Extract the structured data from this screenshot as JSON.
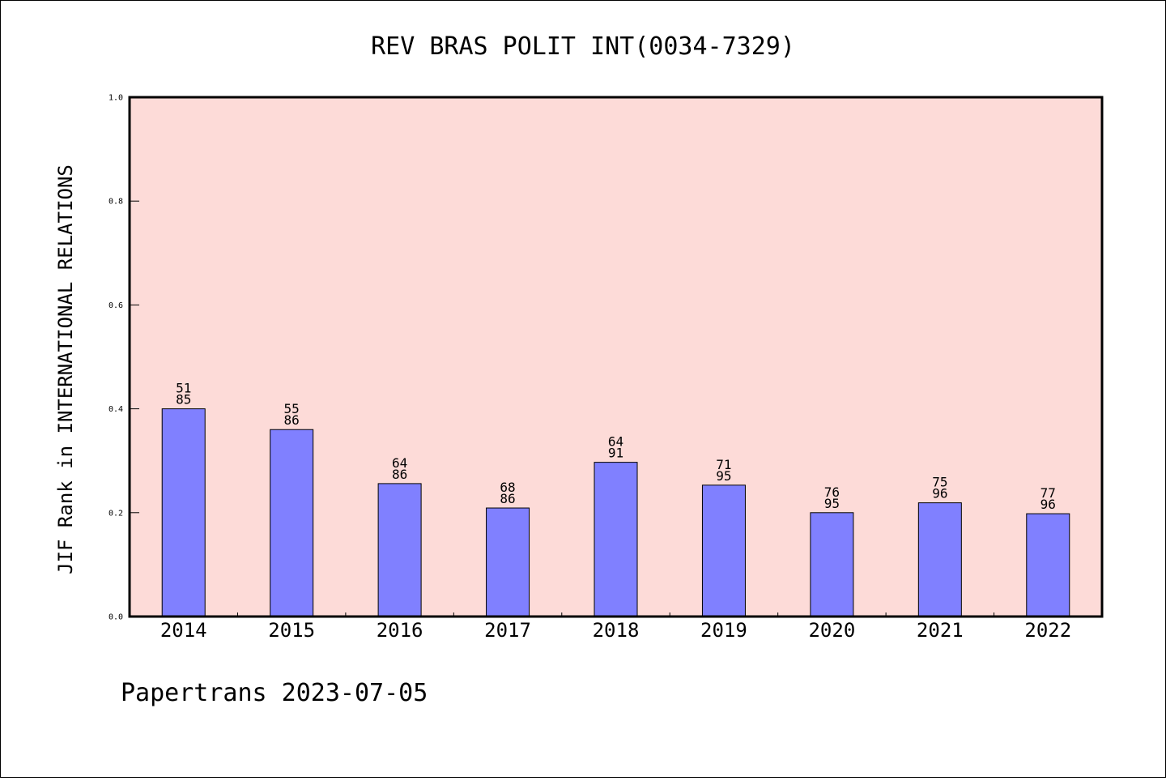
{
  "chart_data": {
    "type": "bar",
    "title": "REV BRAS POLIT INT(0034-7329)",
    "ylabel": "JIF Rank in INTERNATIONAL RELATIONS",
    "xlabel": "",
    "ylim": [
      0,
      1.0
    ],
    "yticks": [
      0.0,
      0.2,
      0.4,
      0.6,
      0.8,
      1.0
    ],
    "ytick_labels": [
      "0.0",
      "0.2",
      "0.4",
      "0.6",
      "0.8",
      "1.0"
    ],
    "categories": [
      "2014",
      "2015",
      "2016",
      "2017",
      "2018",
      "2019",
      "2020",
      "2021",
      "2022"
    ],
    "values": [
      0.4,
      0.36,
      0.256,
      0.209,
      0.297,
      0.253,
      0.2,
      0.219,
      0.198
    ],
    "ranks": [
      "51",
      "55",
      "64",
      "68",
      "64",
      "71",
      "76",
      "75",
      "77"
    ],
    "totals": [
      "85",
      "86",
      "86",
      "86",
      "91",
      "95",
      "95",
      "96",
      "96"
    ],
    "grid": false,
    "legend": "none",
    "colors": {
      "plot_background": "#fddbd8",
      "bar_fill": "#8080ff",
      "bar_stroke": "#000000",
      "axis": "#000000"
    }
  },
  "footer": {
    "text": "Papertrans 2023-07-05"
  }
}
